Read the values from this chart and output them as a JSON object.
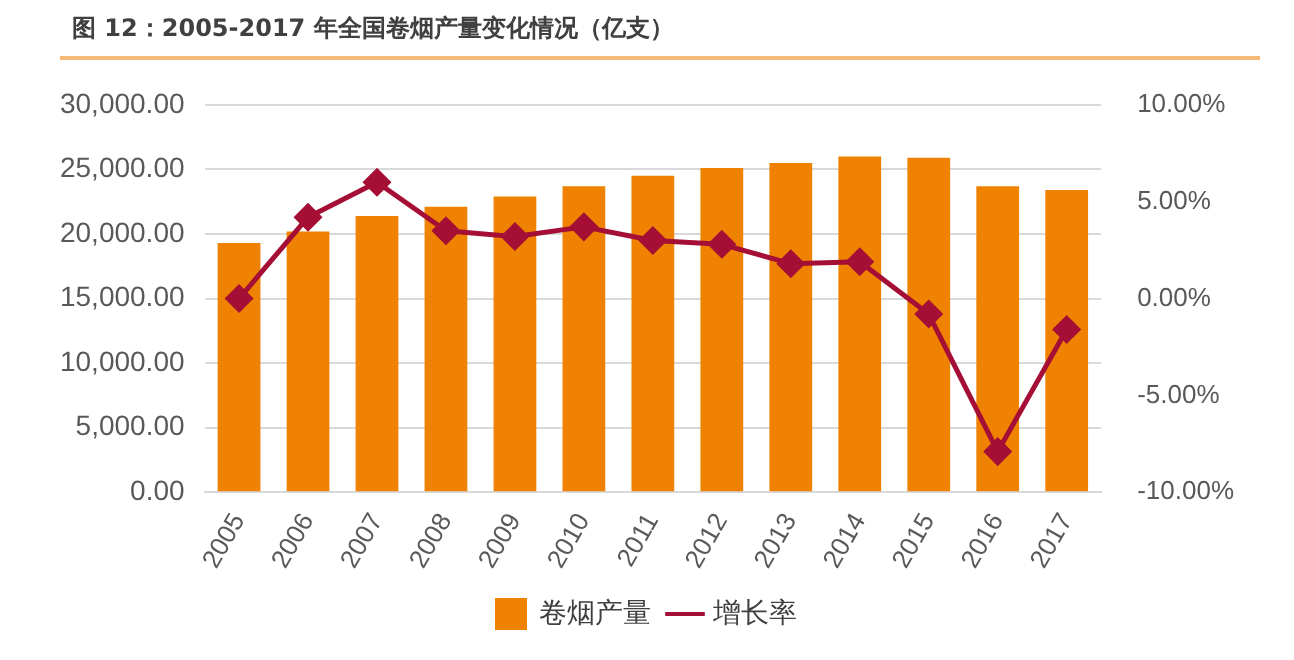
{
  "chart_data": {
    "type": "bar",
    "title": "图 12：2005-2017 年全国卷烟产量变化情况（亿支）",
    "categories": [
      "2005",
      "2006",
      "2007",
      "2008",
      "2009",
      "2010",
      "2011",
      "2012",
      "2013",
      "2014",
      "2015",
      "2016",
      "2017"
    ],
    "series": [
      {
        "name": "卷烟产量",
        "color": "#ef8200",
        "values": [
          19300,
          20200,
          21400,
          22100,
          22900,
          23700,
          24500,
          25100,
          25500,
          26000,
          25900,
          23700,
          23400
        ]
      },
      {
        "name": "增长率",
        "type": "line",
        "axis": "y2",
        "color": "#a50f35",
        "marker": "diamond",
        "values": [
          0.0,
          4.2,
          6.0,
          3.5,
          3.2,
          3.7,
          3.0,
          2.8,
          1.8,
          1.9,
          -0.8,
          -7.9,
          -1.6
        ]
      }
    ],
    "ylim": [
      0,
      30000
    ],
    "yticks": [
      {
        "value": 0,
        "label": "0.00"
      },
      {
        "value": 5000,
        "label": "5,000.00"
      },
      {
        "value": 10000,
        "label": "10,000.00"
      },
      {
        "value": 15000,
        "label": "15,000.00"
      },
      {
        "value": 20000,
        "label": "20,000.00"
      },
      {
        "value": 25000,
        "label": "25,000.00"
      },
      {
        "value": 30000,
        "label": "30,000.00"
      }
    ],
    "y2lim": [
      -10,
      10
    ],
    "y2ticks": [
      {
        "value": -10,
        "label": "-10.00%"
      },
      {
        "value": -5,
        "label": "-5.00%"
      },
      {
        "value": 0,
        "label": "0.00%"
      },
      {
        "value": 5,
        "label": "5.00%"
      },
      {
        "value": 10,
        "label": "10.00%"
      }
    ],
    "grid": "y",
    "legend": "bottom"
  }
}
